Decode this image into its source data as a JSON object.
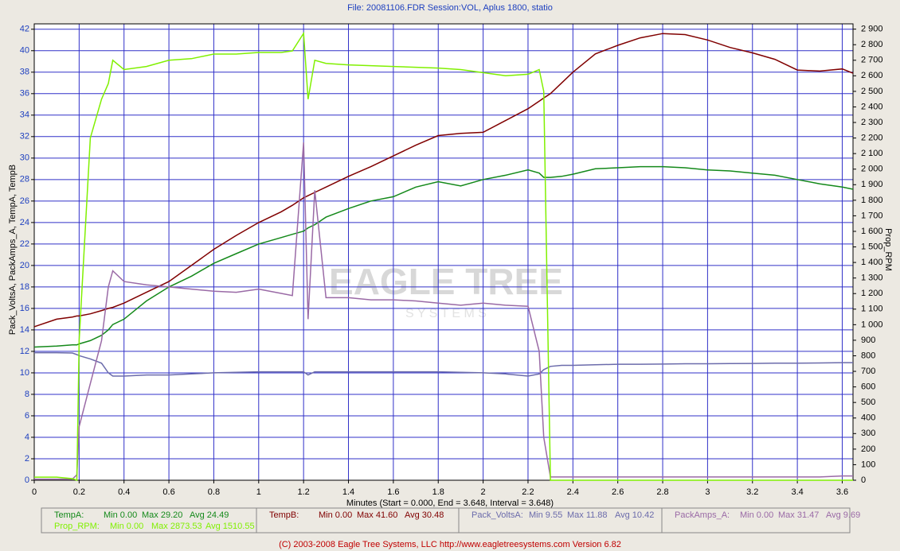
{
  "chart_data": {
    "type": "line",
    "title": "File: 20081106.FDR   Session:VOL, Aplus 1800, statio",
    "x_label": "Minutes (Start = 0.000,  End = 3.648,  Interval =  3.648)",
    "y_label": "Pack_VoltsA, PackAmps_A, TempA, TempB",
    "y2_label": "Prop_RPM",
    "footer": "(C) 2003-2008 Eagle Tree Systems, LLC      http://www.eagletreesystems.com      Version 6.82",
    "watermark": [
      "EAGLE TREE",
      "S Y S T E M S"
    ],
    "grid": true,
    "xlim": [
      0,
      3.648
    ],
    "xticks": [
      0,
      0.2,
      0.4,
      0.6,
      0.8,
      1,
      1.2,
      1.4,
      1.6,
      1.8,
      2,
      2.2,
      2.4,
      2.6,
      2.8,
      3,
      3.2,
      3.4,
      3.6
    ],
    "ylim": [
      0,
      42.5
    ],
    "yticks": [
      0,
      2,
      4,
      6,
      8,
      10,
      12,
      14,
      16,
      18,
      20,
      22,
      24,
      26,
      28,
      30,
      32,
      34,
      36,
      38,
      40,
      42
    ],
    "y2lim": [
      0,
      2934
    ],
    "y2ticks": [
      0,
      100,
      200,
      300,
      400,
      500,
      600,
      700,
      800,
      900,
      {
        "value": 1000,
        "label": "1 000"
      },
      {
        "value": 1100,
        "label": "1 100"
      },
      {
        "value": 1200,
        "label": "1 200"
      },
      {
        "value": 1300,
        "label": "1 300"
      },
      {
        "value": 1400,
        "label": "1 400"
      },
      {
        "value": 1500,
        "label": "1 500"
      },
      {
        "value": 1600,
        "label": "1 600"
      },
      {
        "value": 1700,
        "label": "1 700"
      },
      {
        "value": 1800,
        "label": "1 800"
      },
      {
        "value": 1900,
        "label": "1 900"
      },
      {
        "value": 2000,
        "label": "2 000"
      },
      {
        "value": 2100,
        "label": "2 100"
      },
      {
        "value": 2200,
        "label": "2 200"
      },
      {
        "value": 2300,
        "label": "2 300"
      },
      {
        "value": 2400,
        "label": "2 400"
      },
      {
        "value": 2500,
        "label": "2 500"
      },
      {
        "value": 2600,
        "label": "2 600"
      },
      {
        "value": 2700,
        "label": "2 700"
      },
      {
        "value": 2800,
        "label": "2 800"
      },
      {
        "value": 2900,
        "label": "2 900"
      }
    ],
    "x": [
      0,
      0.1,
      0.17,
      0.19,
      0.2,
      0.25,
      0.3,
      0.33,
      0.35,
      0.4,
      0.5,
      0.6,
      0.7,
      0.8,
      0.9,
      1,
      1.1,
      1.15,
      1.2,
      1.22,
      1.25,
      1.3,
      1.4,
      1.5,
      1.6,
      1.7,
      1.8,
      1.9,
      2,
      2.1,
      2.2,
      2.25,
      2.27,
      2.3,
      2.35,
      2.4,
      2.5,
      2.6,
      2.7,
      2.8,
      2.9,
      3,
      3.1,
      3.2,
      3.3,
      3.4,
      3.5,
      3.6,
      3.648
    ],
    "series": [
      {
        "name": "TempA:",
        "color": "#14891a",
        "stats": [
          "Min 0.00",
          "Max 29.20",
          "Avg 24.49"
        ],
        "values": [
          12.4,
          12.5,
          12.6,
          12.6,
          12.7,
          13,
          13.5,
          14,
          14.5,
          15,
          16.7,
          18,
          19,
          20.2,
          21.1,
          22,
          22.6,
          22.9,
          23.2,
          23.5,
          23.8,
          24.5,
          25.3,
          26,
          26.4,
          27.3,
          27.8,
          27.4,
          28,
          28.4,
          28.9,
          28.6,
          28.2,
          28.2,
          28.3,
          28.5,
          29,
          29.1,
          29.2,
          29.2,
          29.1,
          28.9,
          28.8,
          28.6,
          28.4,
          28,
          27.6,
          27.3,
          27.1
        ]
      },
      {
        "name": "Prop_RPM:",
        "color": "#80f000",
        "axis": "y2",
        "stats": [
          "Min 0.00",
          "Max 2873.53",
          "Avg 1510.55"
        ],
        "values": [
          20,
          20,
          10,
          0,
          900,
          2200,
          2450,
          2550,
          2700,
          2640,
          2660,
          2700,
          2710,
          2740,
          2740,
          2750,
          2750,
          2760,
          2873,
          2450,
          2700,
          2680,
          2670,
          2665,
          2660,
          2655,
          2650,
          2640,
          2620,
          2600,
          2610,
          2640,
          2500,
          0,
          0,
          0,
          0,
          0,
          0,
          0,
          0,
          0,
          0,
          0,
          0,
          0,
          0,
          0,
          0
        ]
      },
      {
        "name": "TempB:",
        "color": "#800000",
        "stats": [
          "Min 0.00",
          "Max 41.60",
          "Avg 30.48"
        ],
        "values": [
          14.3,
          15,
          15.2,
          15.3,
          15.3,
          15.5,
          15.8,
          16,
          16.1,
          16.5,
          17.5,
          18.5,
          20,
          21.5,
          22.8,
          24,
          25,
          25.6,
          26.3,
          26.5,
          26.8,
          27.3,
          28.3,
          29.2,
          30.2,
          31.2,
          32.1,
          32.3,
          32.4,
          33.5,
          34.6,
          35.3,
          35.6,
          36,
          37,
          38,
          39.7,
          40.5,
          41.2,
          41.6,
          41.5,
          41,
          40.3,
          39.8,
          39.2,
          38.2,
          38.1,
          38.3,
          37.9
        ]
      },
      {
        "name": "Pack_VoltsA:",
        "color": "#6b6bab",
        "stats": [
          "Min 9.55",
          "Max 11.88",
          "Avg 10.42"
        ],
        "values": [
          11.88,
          11.88,
          11.85,
          11.7,
          11.6,
          11.3,
          10.9,
          10,
          9.7,
          9.7,
          9.8,
          9.8,
          9.9,
          10,
          10.05,
          10.1,
          10.1,
          10.1,
          10.1,
          9.8,
          10.1,
          10.1,
          10.1,
          10.1,
          10.1,
          10.1,
          10.1,
          10.05,
          10,
          9.9,
          9.7,
          9.9,
          10.3,
          10.6,
          10.7,
          10.7,
          10.75,
          10.8,
          10.8,
          10.82,
          10.85,
          10.85,
          10.87,
          10.88,
          10.9,
          10.9,
          10.92,
          10.95,
          10.95
        ]
      },
      {
        "name": "PackAmps_A:",
        "color": "#9a6aa6",
        "stats": [
          "Min 0.00",
          "Max 31.47",
          "Avg 9.69"
        ],
        "values": [
          0.1,
          0.1,
          0.1,
          0.5,
          5,
          9,
          13,
          18,
          19.5,
          18.5,
          18.2,
          18,
          17.8,
          17.6,
          17.5,
          17.8,
          17.4,
          17.2,
          31.47,
          15,
          27,
          17,
          17,
          16.8,
          16.8,
          16.7,
          16.5,
          16.3,
          16.5,
          16.3,
          16.2,
          12,
          4,
          0.3,
          0.3,
          0.3,
          0.3,
          0.3,
          0.3,
          0.3,
          0.3,
          0.3,
          0.3,
          0.3,
          0.3,
          0.3,
          0.3,
          0.4,
          0.4
        ]
      }
    ]
  }
}
